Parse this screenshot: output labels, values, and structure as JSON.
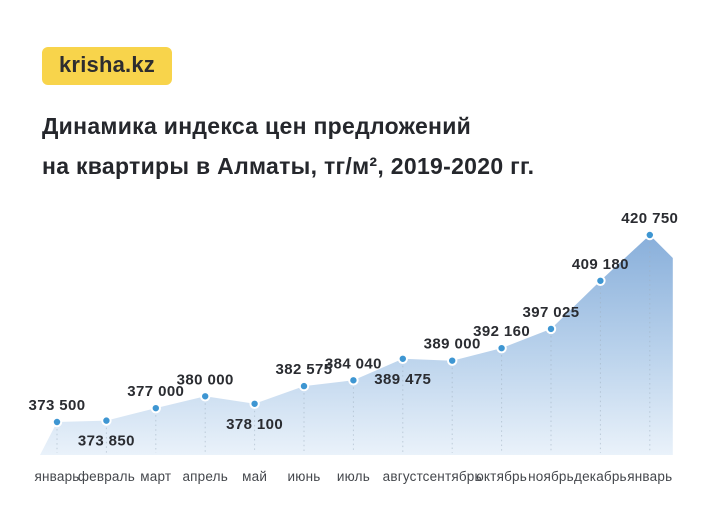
{
  "brand": {
    "logo_text": "krisha.kz"
  },
  "header": {
    "title_line1": "Динамика индекса цен предложений",
    "title_line2": "на квартиры в Алматы, тг/м², 2019-2020 гг."
  },
  "colors": {
    "background": "#ffffff",
    "logo_background": "#F8D44B",
    "logo_text": "#2D2D2F",
    "title_text": "#25272C",
    "value_label_text": "#2A2C31",
    "month_label_text": "#44474C",
    "point_fill": "#3E96D2",
    "point_ring": "#ffffff",
    "area_gradient_top": "#87AEDA",
    "area_gradient_mid": "#BBD3EC",
    "area_gradient_bottom": "#EAF2FA",
    "guide_line": "#9FB0BF"
  },
  "chart_data": {
    "type": "area",
    "title": "Динамика индекса цен предложений на квартиры в Алматы, тг/м², 2019-2020 гг.",
    "xlabel": "",
    "ylabel": "тг/м²",
    "categories": [
      "январь",
      "февраль",
      "март",
      "апрель",
      "май",
      "июнь",
      "июль",
      "август",
      "сентябрь",
      "октябрь",
      "ноябрь",
      "декабрь",
      "январь"
    ],
    "values": [
      373500,
      373850,
      377000,
      380000,
      378100,
      382575,
      384040,
      389475,
      389000,
      392160,
      397025,
      409180,
      420750
    ],
    "value_labels": [
      "373 500",
      "373 850",
      "377 000",
      "380 000",
      "378 100",
      "382 575",
      "384 040",
      "389 475",
      "389 000",
      "392 160",
      "397 025",
      "409 180",
      "420 750"
    ],
    "label_position": [
      "above",
      "below",
      "above",
      "above",
      "below",
      "above",
      "above",
      "below",
      "above",
      "above",
      "above",
      "above",
      "above"
    ],
    "ylim": [
      373500,
      420750
    ],
    "grid": "dotted-vertical-guides",
    "legend_position": "none",
    "markers": "point-per-month"
  }
}
